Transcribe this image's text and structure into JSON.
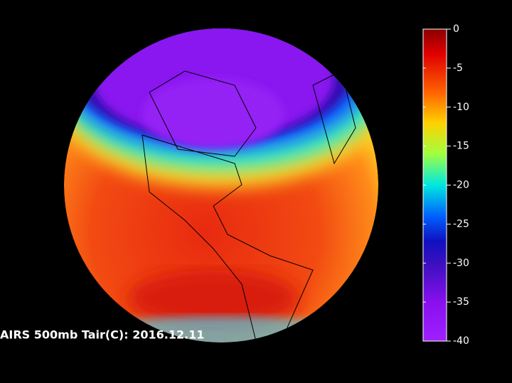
{
  "caption": "AIRS 500mb Tair(C): 2016.12.11",
  "colorbar": {
    "lim": [
      -40,
      0
    ],
    "ticks": [
      0,
      -5,
      -10,
      -15,
      -20,
      -25,
      -30,
      -35,
      -40
    ]
  }
}
